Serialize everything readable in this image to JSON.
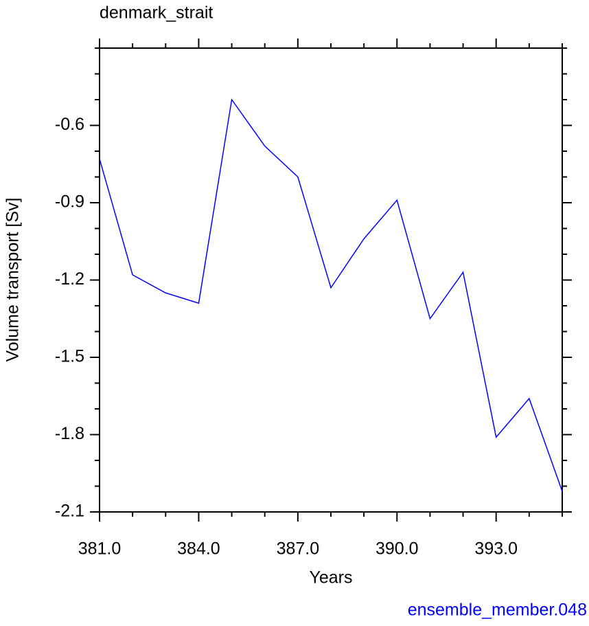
{
  "chart_data": {
    "type": "line",
    "title": "denmark_strait",
    "x_label": "Years",
    "y_label": "Volume transport [Sv]",
    "annotation": "ensemble_member.048",
    "annotation_color": "#0000ff",
    "x": [
      381,
      382,
      383,
      384,
      385,
      386,
      387,
      388,
      389,
      390,
      391,
      392,
      393,
      394,
      395
    ],
    "series": [
      {
        "name": "denmark_strait",
        "color": "#0000ff",
        "values": [
          -0.73,
          -1.18,
          -1.25,
          -1.29,
          -0.5,
          -0.68,
          -0.8,
          -1.23,
          -1.04,
          -0.89,
          -1.35,
          -1.17,
          -1.81,
          -1.66,
          -2.02
        ]
      }
    ],
    "xlim": [
      381,
      395
    ],
    "ylim": [
      -2.1,
      -0.3
    ],
    "xticks": [
      {
        "value": 381,
        "label": "381.0"
      },
      {
        "value": 384,
        "label": "384.0"
      },
      {
        "value": 387,
        "label": "387.0"
      },
      {
        "value": 390,
        "label": "390.0"
      },
      {
        "value": 393,
        "label": "393.0"
      }
    ],
    "yticks": [
      -2.1,
      -1.8,
      -1.5,
      -1.2,
      -0.9,
      -0.6
    ],
    "xminorticks": [
      382,
      383,
      385,
      386,
      388,
      389,
      391,
      392,
      394,
      395
    ],
    "yminorticks": [
      -2.0,
      -1.9,
      -1.7,
      -1.6,
      -1.4,
      -1.3,
      -1.1,
      -1.0,
      -0.8,
      -0.7,
      -0.5,
      -0.4,
      -0.3
    ]
  }
}
